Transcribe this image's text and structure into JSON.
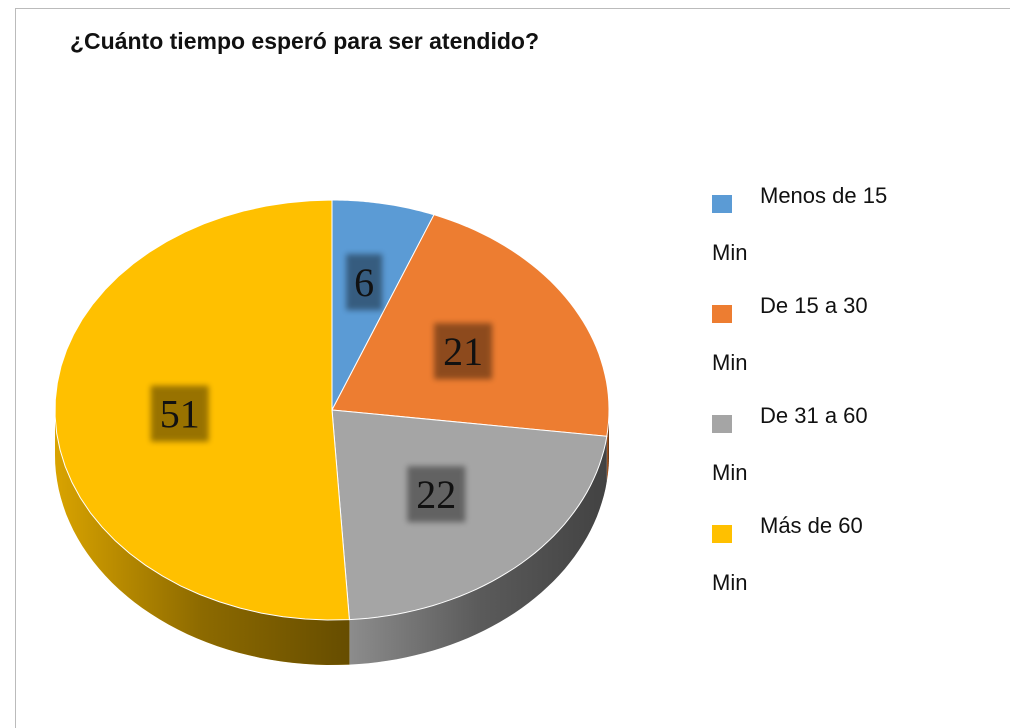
{
  "chart_data": {
    "type": "pie",
    "title": "¿Cuánto tiempo esperó para ser atendido?",
    "categories": [
      "Menos de 15 Min",
      "De 15 a 30 Min",
      "De 31 a 60 Min",
      "Más de 60 Min"
    ],
    "values": [
      6,
      21,
      22,
      51
    ],
    "colors": [
      "#5b9bd5",
      "#ed7d31",
      "#a5a5a5",
      "#ffc000"
    ],
    "legend": "right"
  }
}
